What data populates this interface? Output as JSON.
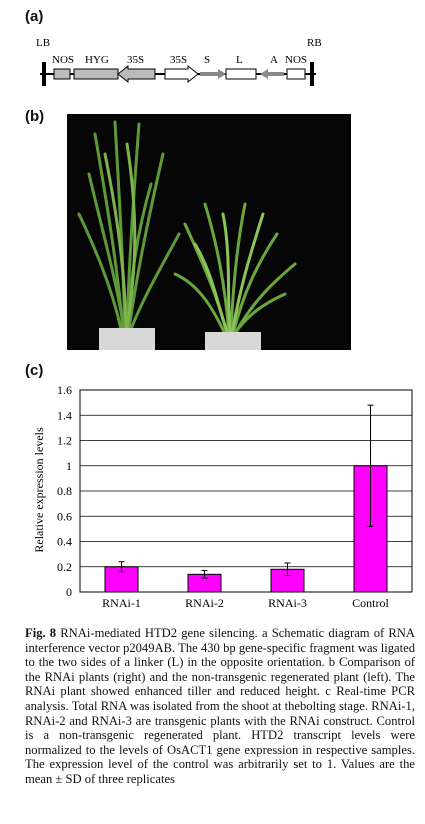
{
  "panels": {
    "a": "(a)",
    "b": "(b)",
    "c": "(c)"
  },
  "vector_diagram": {
    "left_border": "LB",
    "right_border": "RB",
    "elements": [
      "NOS",
      "HYG",
      "35S",
      "35S",
      "S",
      "L",
      "A",
      "NOS"
    ]
  },
  "chart_data": {
    "type": "bar",
    "categories": [
      "RNAi-1",
      "RNAi-2",
      "RNAi-3",
      "Control"
    ],
    "values": [
      0.2,
      0.14,
      0.18,
      1.0
    ],
    "errors": [
      0.04,
      0.03,
      0.05,
      0.48
    ],
    "ylabel": "Relative expression levels",
    "ylim": [
      0,
      1.6
    ],
    "yticks": [
      "0",
      "0.2",
      "0.4",
      "0.6",
      "0.8",
      "1",
      "1.2",
      "1.4",
      "1.6"
    ],
    "grid": true,
    "bar_color": "#ff00ff"
  },
  "caption": {
    "fig_label": "Fig. 8",
    "text": "RNAi-mediated HTD2 gene silencing. a Schematic diagram of RNA interference vector p2049AB. The 430 bp gene-specific fragment was ligated to the two sides of a linker (L) in the opposite orientation. b Comparison of the RNAi plants (right) and the non-transgenic regenerated plant (left). The RNAi plant showed enhanced tiller and reduced height. c Real-time PCR analysis. Total RNA was isolated from the shoot at thebolting stage. RNAi-1, RNAi-2 and RNAi-3 are transgenic plants with the RNAi construct. Control is a non-transgenic regenerated plant. HTD2 transcript levels were normalized to the levels of OsACT1 gene expression in respective samples. The expression level of the control was arbitrarily set to 1. Values are the mean ± SD of three replicates"
  }
}
